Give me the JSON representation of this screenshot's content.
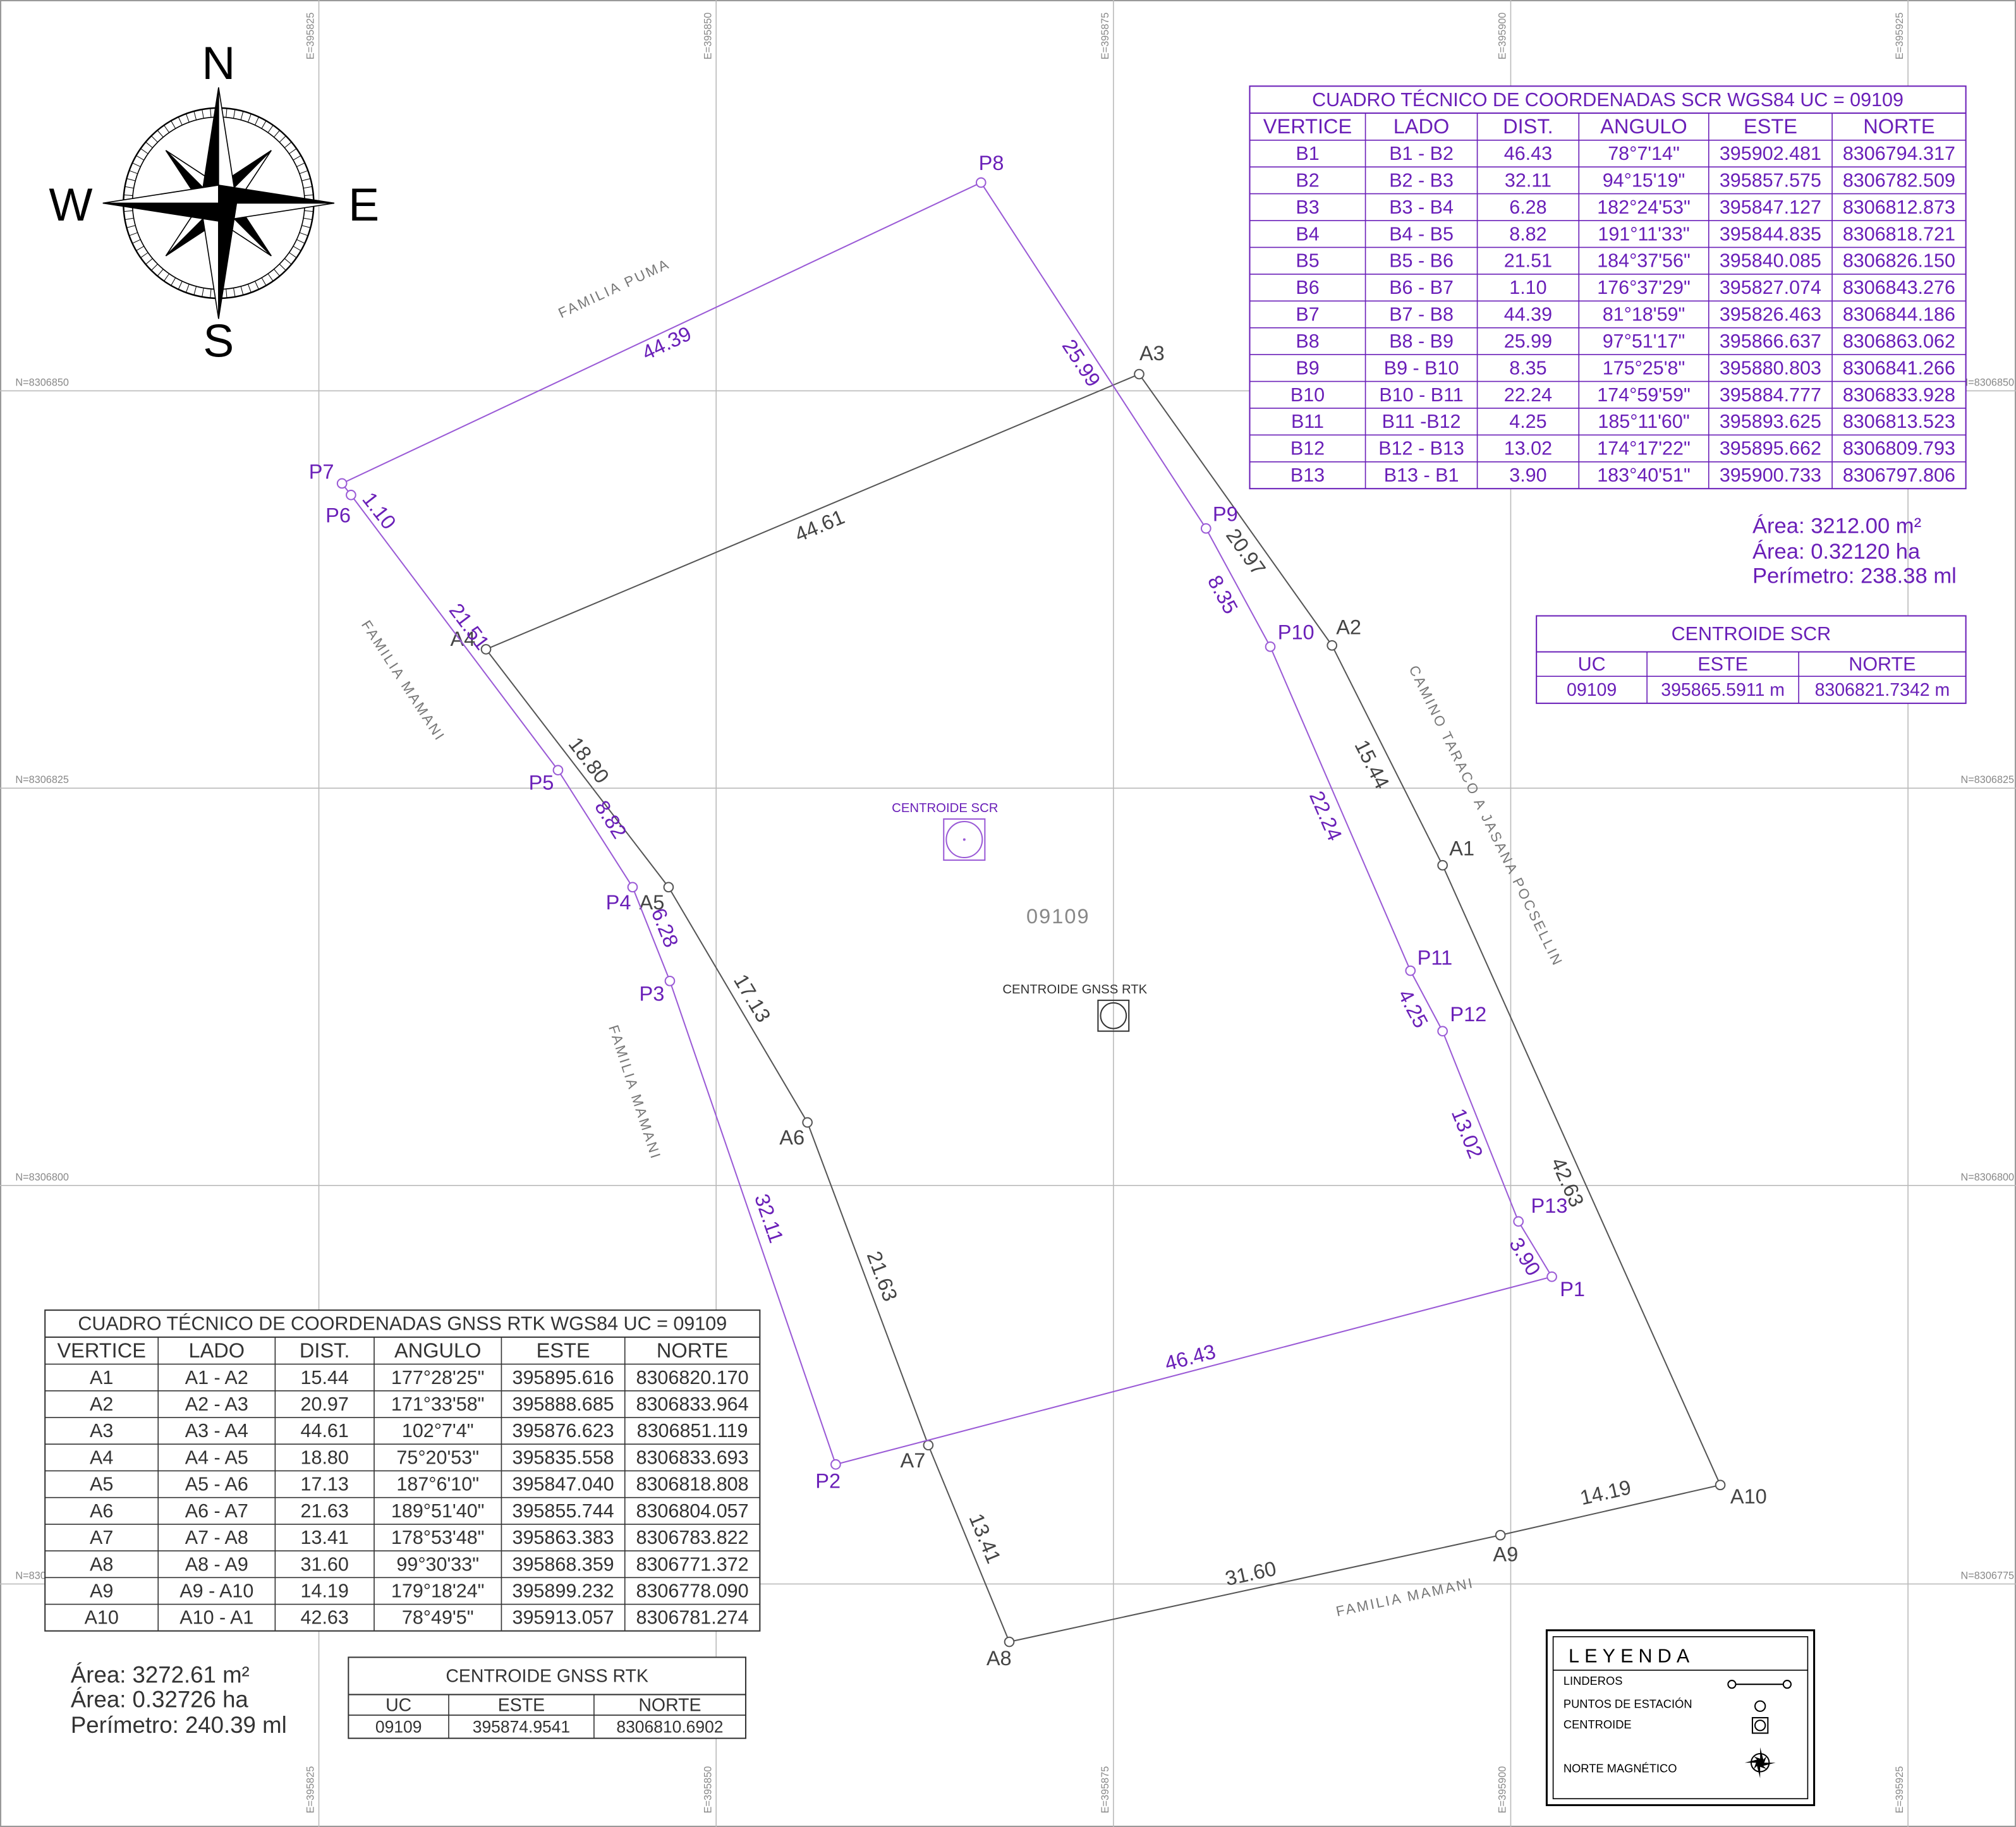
{
  "compass": {
    "n": "N",
    "s": "S",
    "e": "E",
    "w": "W"
  },
  "grid": {
    "easting": [
      "E=395825",
      "E=395850",
      "E=395875",
      "E=395900",
      "E=395925"
    ],
    "northing": [
      "N=8306850",
      "N=8306825",
      "N=8306800",
      "N=8306775"
    ]
  },
  "scr_table": {
    "title": "CUADRO TÉCNICO DE COORDENADAS SCR WGS84 UC = 09109",
    "headers": [
      "VERTICE",
      "LADO",
      "DIST.",
      "ANGULO",
      "ESTE",
      "NORTE"
    ],
    "rows": [
      [
        "B1",
        "B1 - B2",
        "46.43",
        "78°7'14\"",
        "395902.481",
        "8306794.317"
      ],
      [
        "B2",
        "B2 - B3",
        "32.11",
        "94°15'19\"",
        "395857.575",
        "8306782.509"
      ],
      [
        "B3",
        "B3 - B4",
        "6.28",
        "182°24'53\"",
        "395847.127",
        "8306812.873"
      ],
      [
        "B4",
        "B4 - B5",
        "8.82",
        "191°11'33\"",
        "395844.835",
        "8306818.721"
      ],
      [
        "B5",
        "B5 - B6",
        "21.51",
        "184°37'56\"",
        "395840.085",
        "8306826.150"
      ],
      [
        "B6",
        "B6 - B7",
        "1.10",
        "176°37'29\"",
        "395827.074",
        "8306843.276"
      ],
      [
        "B7",
        "B7 - B8",
        "44.39",
        "81°18'59\"",
        "395826.463",
        "8306844.186"
      ],
      [
        "B8",
        "B8 - B9",
        "25.99",
        "97°51'17\"",
        "395866.637",
        "8306863.062"
      ],
      [
        "B9",
        "B9 - B10",
        "8.35",
        "175°25'8\"",
        "395880.803",
        "8306841.266"
      ],
      [
        "B10",
        "B10 - B11",
        "22.24",
        "174°59'59\"",
        "395884.777",
        "8306833.928"
      ],
      [
        "B11",
        "B11 -B12",
        "4.25",
        "185°11'60\"",
        "395893.625",
        "8306813.523"
      ],
      [
        "B12",
        "B12 - B13",
        "13.02",
        "174°17'22\"",
        "395895.662",
        "8306809.793"
      ],
      [
        "B13",
        "B13 - B1",
        "3.90",
        "183°40'51\"",
        "395900.733",
        "8306797.806"
      ]
    ]
  },
  "scr_summary": [
    "Área: 3212.00 m²",
    "Área: 0.32120 ha",
    "Perímetro: 238.38 ml"
  ],
  "scr_centroid": {
    "title": "CENTROIDE SCR",
    "headers": [
      "UC",
      "ESTE",
      "NORTE"
    ],
    "rows": [
      [
        "09109",
        "395865.5911 m",
        "8306821.7342 m"
      ]
    ]
  },
  "gnss_table": {
    "title": "CUADRO TÉCNICO DE COORDENADAS GNSS RTK WGS84 UC = 09109",
    "headers": [
      "VERTICE",
      "LADO",
      "DIST.",
      "ANGULO",
      "ESTE",
      "NORTE"
    ],
    "rows": [
      [
        "A1",
        "A1 - A2",
        "15.44",
        "177°28'25\"",
        "395895.616",
        "8306820.170"
      ],
      [
        "A2",
        "A2 - A3",
        "20.97",
        "171°33'58\"",
        "395888.685",
        "8306833.964"
      ],
      [
        "A3",
        "A3 - A4",
        "44.61",
        "102°7'4\"",
        "395876.623",
        "8306851.119"
      ],
      [
        "A4",
        "A4 - A5",
        "18.80",
        "75°20'53\"",
        "395835.558",
        "8306833.693"
      ],
      [
        "A5",
        "A5 - A6",
        "17.13",
        "187°6'10\"",
        "395847.040",
        "8306818.808"
      ],
      [
        "A6",
        "A6 - A7",
        "21.63",
        "189°51'40\"",
        "395855.744",
        "8306804.057"
      ],
      [
        "A7",
        "A7 - A8",
        "13.41",
        "178°53'48\"",
        "395863.383",
        "8306783.822"
      ],
      [
        "A8",
        "A8 - A9",
        "31.60",
        "99°30'33\"",
        "395868.359",
        "8306771.372"
      ],
      [
        "A9",
        "A9 - A10",
        "14.19",
        "179°18'24\"",
        "395899.232",
        "8306778.090"
      ],
      [
        "A10",
        "A10 - A1",
        "42.63",
        "78°49'5\"",
        "395913.057",
        "8306781.274"
      ]
    ]
  },
  "gnss_summary": [
    "Área: 3272.61 m²",
    "Área: 0.32726 ha",
    "Perímetro: 240.39 ml"
  ],
  "gnss_centroid": {
    "title": "CENTROIDE GNSS RTK",
    "headers": [
      "UC",
      "ESTE",
      "NORTE"
    ],
    "rows": [
      [
        "09109",
        "395874.9541",
        "8306810.6902"
      ]
    ]
  },
  "map": {
    "scr_points": [
      "P1",
      "P2",
      "P3",
      "P4",
      "P5",
      "P6",
      "P7",
      "P8",
      "P9",
      "P10",
      "P11",
      "P12",
      "P13"
    ],
    "scr_sides": [
      "46.43",
      "32.11",
      "6.28",
      "8.82",
      "21.51",
      "1.10",
      "44.39",
      "25.99",
      "8.35",
      "22.24",
      "4.25",
      "13.02",
      "3.90"
    ],
    "gnss_points": [
      "A1",
      "A2",
      "A3",
      "A4",
      "A5",
      "A6",
      "A7",
      "A8",
      "A9",
      "A10"
    ],
    "gnss_sides": [
      "15.44",
      "20.97",
      "44.61",
      "18.80",
      "17.13",
      "21.63",
      "13.41",
      "31.60",
      "14.19",
      "42.63"
    ],
    "neighbors": [
      "FAMILIA PUMA",
      "FAMILIA MAMANI",
      "FAMILIA MAMANI",
      "CAMINO TARACO A JASANA POCSELLIN",
      "FAMILIA MAMANI"
    ],
    "parcel_id": "09109",
    "centroid_scr_label": "CENTROIDE SCR",
    "centroid_gnss_label": "CENTROIDE GNSS RTK"
  },
  "legend": {
    "title": "LEYENDA",
    "items": [
      "LINDEROS",
      "PUNTOS DE ESTACIÓN",
      "CENTROIDE",
      "NORTE MAGNÉTICO"
    ]
  }
}
